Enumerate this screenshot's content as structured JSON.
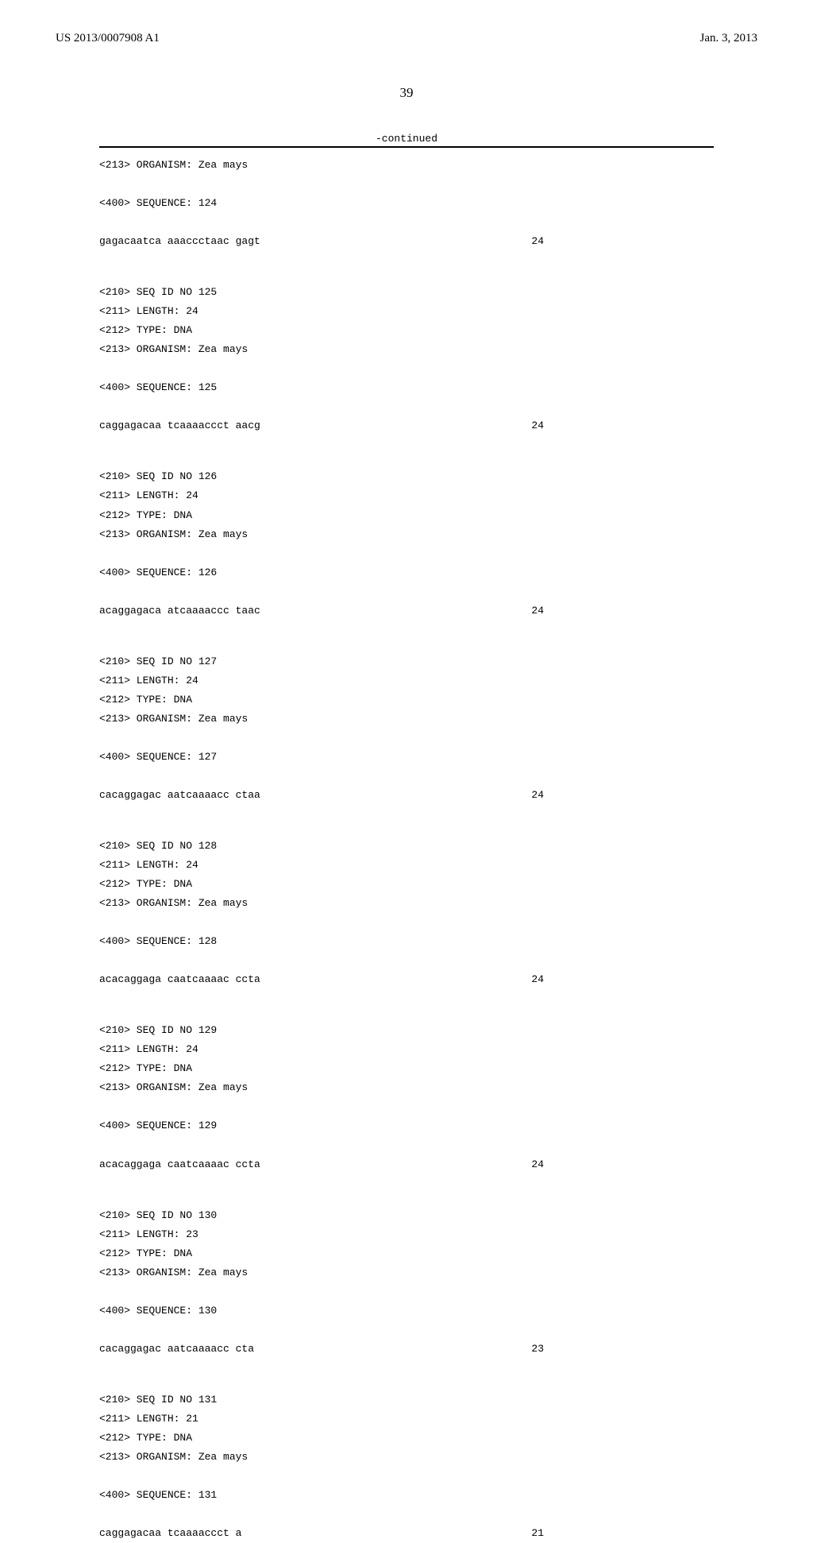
{
  "header": {
    "doc_number": "US 2013/0007908 A1",
    "date": "Jan. 3, 2013"
  },
  "page_number": "39",
  "continued_label": "-continued",
  "entries": [
    {
      "meta_lines": [
        "<213> ORGANISM: Zea mays"
      ],
      "seq_label": "<400> SEQUENCE: 124",
      "sequence": "gagacaatca aaaccctaac gagt",
      "length_value": "24"
    },
    {
      "meta_lines": [
        "<210> SEQ ID NO 125",
        "<211> LENGTH: 24",
        "<212> TYPE: DNA",
        "<213> ORGANISM: Zea mays"
      ],
      "seq_label": "<400> SEQUENCE: 125",
      "sequence": "caggagacaa tcaaaaccct aacg",
      "length_value": "24"
    },
    {
      "meta_lines": [
        "<210> SEQ ID NO 126",
        "<211> LENGTH: 24",
        "<212> TYPE: DNA",
        "<213> ORGANISM: Zea mays"
      ],
      "seq_label": "<400> SEQUENCE: 126",
      "sequence": "acaggagaca atcaaaaccc taac",
      "length_value": "24"
    },
    {
      "meta_lines": [
        "<210> SEQ ID NO 127",
        "<211> LENGTH: 24",
        "<212> TYPE: DNA",
        "<213> ORGANISM: Zea mays"
      ],
      "seq_label": "<400> SEQUENCE: 127",
      "sequence": "cacaggagac aatcaaaacc ctaa",
      "length_value": "24"
    },
    {
      "meta_lines": [
        "<210> SEQ ID NO 128",
        "<211> LENGTH: 24",
        "<212> TYPE: DNA",
        "<213> ORGANISM: Zea mays"
      ],
      "seq_label": "<400> SEQUENCE: 128",
      "sequence": "acacaggaga caatcaaaac ccta",
      "length_value": "24"
    },
    {
      "meta_lines": [
        "<210> SEQ ID NO 129",
        "<211> LENGTH: 24",
        "<212> TYPE: DNA",
        "<213> ORGANISM: Zea mays"
      ],
      "seq_label": "<400> SEQUENCE: 129",
      "sequence": "acacaggaga caatcaaaac ccta",
      "length_value": "24"
    },
    {
      "meta_lines": [
        "<210> SEQ ID NO 130",
        "<211> LENGTH: 23",
        "<212> TYPE: DNA",
        "<213> ORGANISM: Zea mays"
      ],
      "seq_label": "<400> SEQUENCE: 130",
      "sequence": "cacaggagac aatcaaaacc cta",
      "length_value": "23"
    },
    {
      "meta_lines": [
        "<210> SEQ ID NO 131",
        "<211> LENGTH: 21",
        "<212> TYPE: DNA",
        "<213> ORGANISM: Zea mays"
      ],
      "seq_label": "<400> SEQUENCE: 131",
      "sequence": "caggagacaa tcaaaaccct a",
      "length_value": "21"
    }
  ]
}
